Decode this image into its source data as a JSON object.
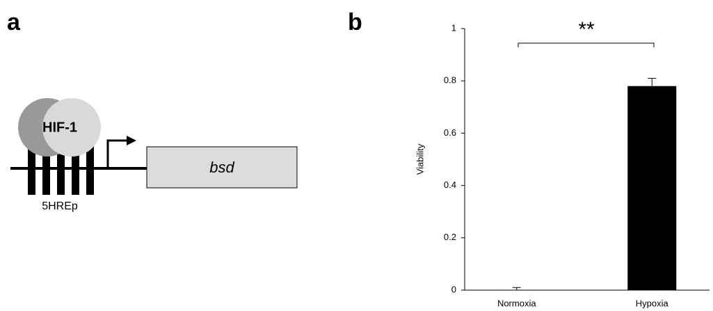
{
  "panel_labels": [
    "a",
    "b"
  ],
  "diagram": {
    "protein": "HIF-1",
    "promoter": "5HREp",
    "gene": "bsd"
  },
  "chart_data": {
    "type": "bar",
    "y_label": "Viability",
    "categories": [
      "Normoxia",
      "Hypoxia"
    ],
    "values": [
      0.0,
      0.78
    ],
    "errors": [
      0.01,
      0.03
    ],
    "color": "#000000",
    "ylim": [
      0,
      1
    ],
    "yticks": [
      0,
      0.2,
      0.4,
      0.6,
      0.8,
      1
    ],
    "annotation": "**"
  }
}
